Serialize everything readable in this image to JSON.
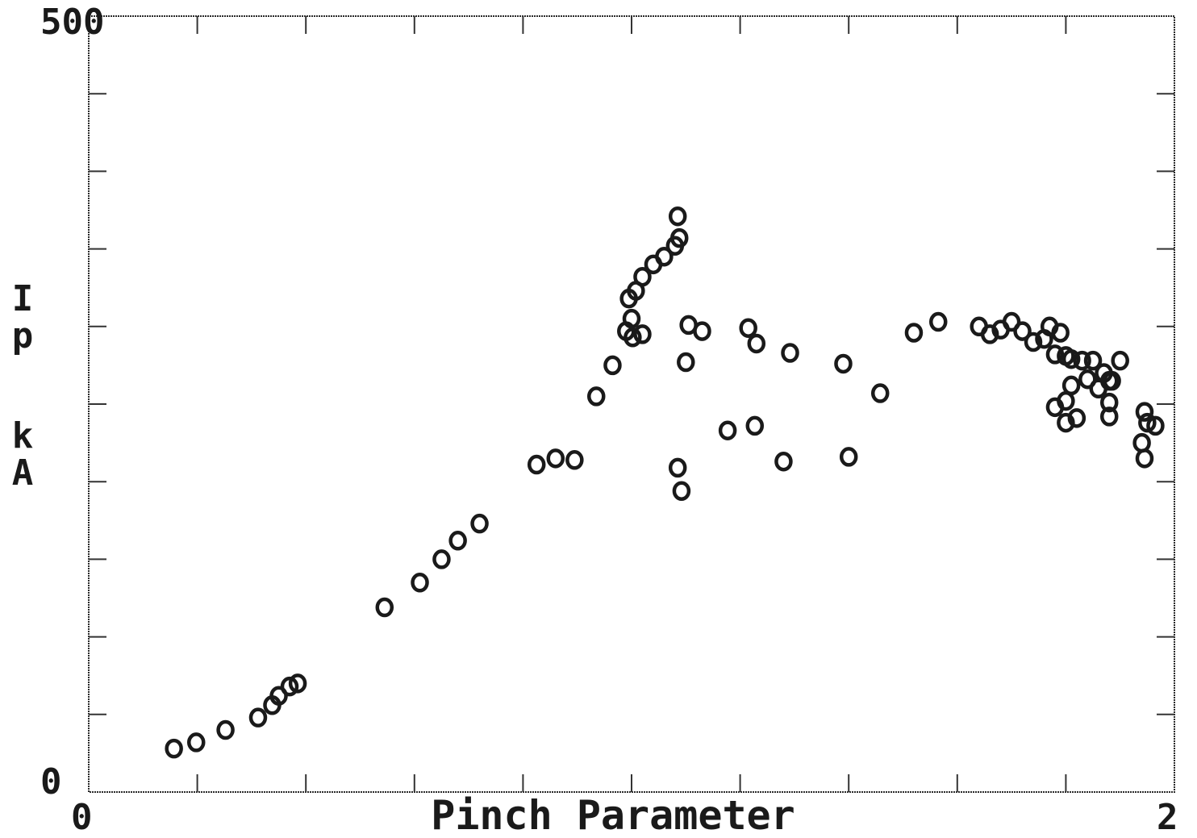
{
  "chart_data": {
    "type": "scatter",
    "title": "",
    "xlabel": "Pinch Parameter",
    "ylabel": "Ip kA",
    "xlim": [
      0,
      2
    ],
    "ylim": [
      0,
      500
    ],
    "x_tick_labels": [
      "0",
      "2"
    ],
    "y_tick_labels": [
      "0",
      "500"
    ],
    "grid": false,
    "legend": "none",
    "marker": "open-circle",
    "marker_color": "#1a1a1a",
    "series": [
      {
        "points": [
          [
            0.157,
            28
          ],
          [
            0.198,
            32
          ],
          [
            0.252,
            40
          ],
          [
            0.312,
            48
          ],
          [
            0.338,
            56
          ],
          [
            0.35,
            62
          ],
          [
            0.37,
            68
          ],
          [
            0.385,
            70
          ],
          [
            0.545,
            119
          ],
          [
            0.61,
            135
          ],
          [
            0.65,
            150
          ],
          [
            0.68,
            162
          ],
          [
            0.72,
            173
          ],
          [
            0.825,
            211
          ],
          [
            0.86,
            215
          ],
          [
            0.895,
            214
          ],
          [
            0.935,
            255
          ],
          [
            0.965,
            275
          ],
          [
            0.99,
            297
          ],
          [
            1.0,
            305
          ],
          [
            0.995,
            318
          ],
          [
            1.008,
            323
          ],
          [
            1.02,
            332
          ],
          [
            1.04,
            340
          ],
          [
            1.06,
            345
          ],
          [
            1.08,
            352
          ],
          [
            1.088,
            357
          ],
          [
            1.085,
            371
          ],
          [
            1.002,
            293
          ],
          [
            1.02,
            295
          ],
          [
            1.105,
            301
          ],
          [
            1.13,
            297
          ],
          [
            1.215,
            299
          ],
          [
            1.23,
            289
          ],
          [
            1.1,
            277
          ],
          [
            1.085,
            209
          ],
          [
            1.177,
            233
          ],
          [
            1.227,
            236
          ],
          [
            1.28,
            213
          ],
          [
            1.292,
            283
          ],
          [
            1.39,
            276
          ],
          [
            1.092,
            194
          ],
          [
            1.4,
            216
          ],
          [
            1.458,
            257
          ],
          [
            1.52,
            296
          ],
          [
            1.565,
            303
          ],
          [
            1.64,
            300
          ],
          [
            1.66,
            295
          ],
          [
            1.68,
            298
          ],
          [
            1.7,
            303
          ],
          [
            1.72,
            297
          ],
          [
            1.74,
            290
          ],
          [
            1.76,
            292
          ],
          [
            1.77,
            300
          ],
          [
            1.79,
            296
          ],
          [
            1.8,
            281
          ],
          [
            1.78,
            282
          ],
          [
            1.81,
            279
          ],
          [
            1.83,
            278
          ],
          [
            1.85,
            278
          ],
          [
            1.87,
            270
          ],
          [
            1.84,
            266
          ],
          [
            1.81,
            262
          ],
          [
            1.8,
            252
          ],
          [
            1.78,
            248
          ],
          [
            1.8,
            238
          ],
          [
            1.82,
            241
          ],
          [
            1.86,
            260
          ],
          [
            1.88,
            242
          ],
          [
            1.88,
            265
          ],
          [
            1.9,
            278
          ],
          [
            1.88,
            251
          ],
          [
            1.945,
            245
          ],
          [
            1.95,
            238
          ],
          [
            1.885,
            265
          ],
          [
            1.965,
            236
          ],
          [
            1.94,
            225
          ],
          [
            1.945,
            215
          ]
        ]
      }
    ]
  }
}
